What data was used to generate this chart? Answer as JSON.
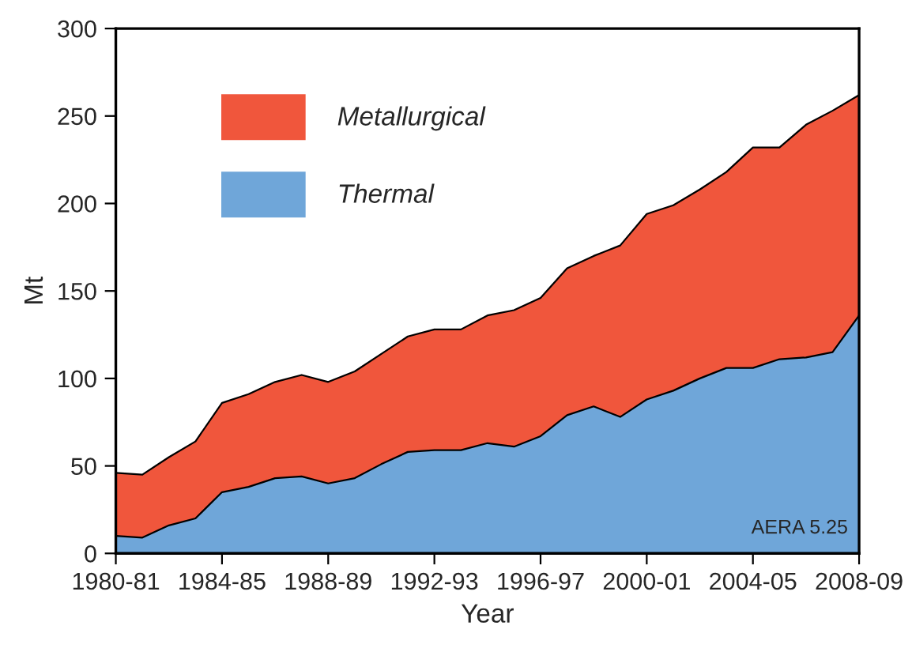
{
  "chart_data": {
    "type": "area",
    "stacked": true,
    "xlabel": "Year",
    "ylabel": "Mt",
    "categories": [
      "1980-81",
      null,
      null,
      null,
      "1984-85",
      null,
      null,
      null,
      "1988-89",
      null,
      null,
      null,
      "1992-93",
      null,
      null,
      null,
      "1996-97",
      null,
      null,
      null,
      "2000-01",
      null,
      null,
      null,
      "2004-05",
      null,
      null,
      null,
      "2008-09"
    ],
    "series": [
      {
        "name": "Thermal",
        "color": "#6fa6d9",
        "values": [
          10,
          9,
          16,
          20,
          35,
          38,
          43,
          44,
          40,
          43,
          51,
          58,
          59,
          59,
          63,
          61,
          67,
          79,
          84,
          78,
          88,
          93,
          100,
          106,
          106,
          111,
          112,
          115,
          136
        ]
      },
      {
        "name": "Metallurgical",
        "color": "#f0563c",
        "values": [
          36,
          36,
          39,
          44,
          51,
          53,
          55,
          58,
          58,
          61,
          63,
          66,
          69,
          69,
          73,
          78,
          79,
          84,
          86,
          98,
          106,
          106,
          108,
          112,
          126,
          121,
          133,
          138,
          126
        ]
      }
    ],
    "ylim": [
      0,
      300
    ],
    "yticks": [
      0,
      50,
      100,
      150,
      200,
      250,
      300
    ],
    "legend": "top left",
    "grid": false,
    "annotations": [
      "AERA 5.25"
    ]
  }
}
